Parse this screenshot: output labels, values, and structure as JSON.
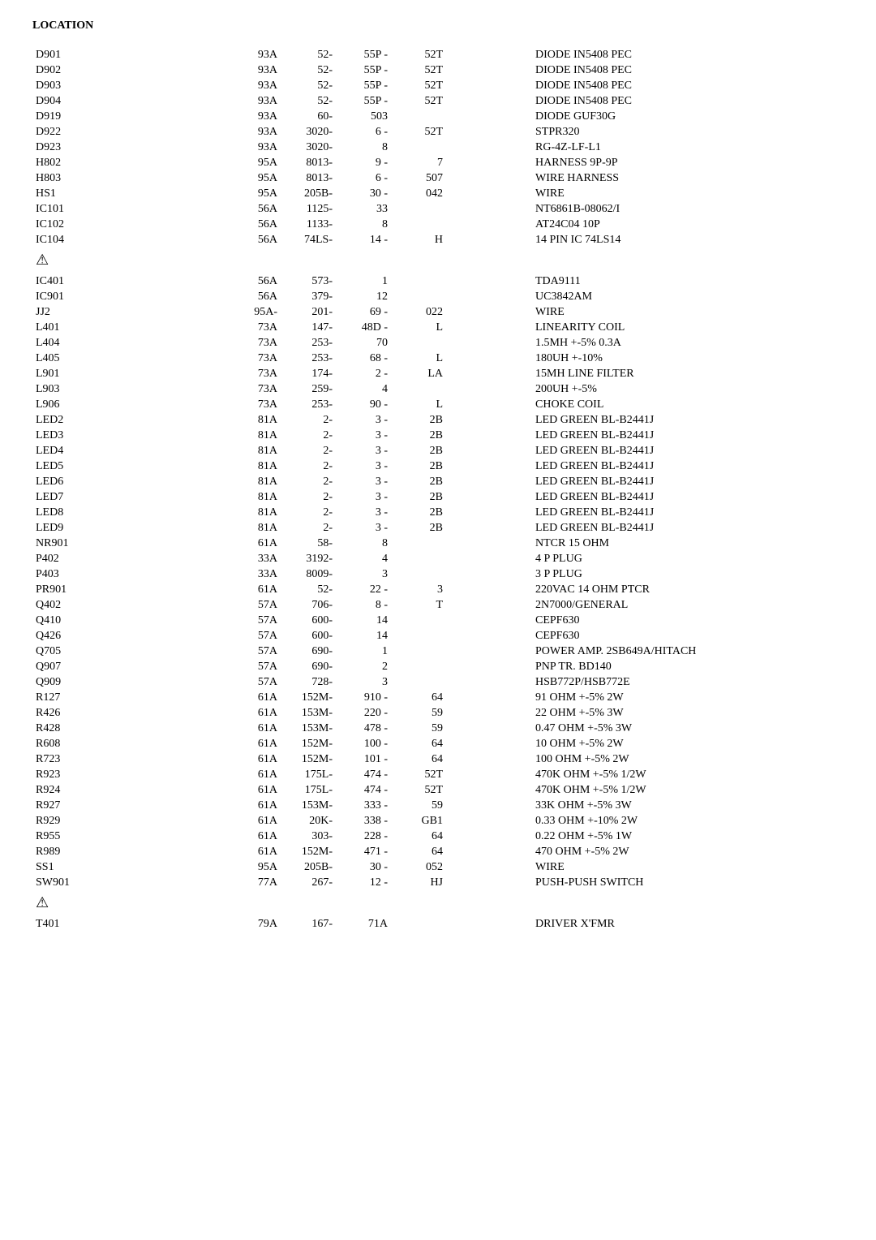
{
  "title": "LOCATION",
  "warning_glyph": "⚠",
  "footer": {
    "loc": "T401",
    "c1": "79A",
    "c2": "167-",
    "c3": "71A",
    "c4": "",
    "desc": "DRIVER X'FMR"
  },
  "groups": [
    {
      "rows": [
        {
          "loc": "D901",
          "c1": "93A",
          "c2": "52-",
          "c3": "55P -",
          "c4": "52T",
          "desc": "DIODE IN5408 PEC"
        },
        {
          "loc": "D902",
          "c1": "93A",
          "c2": "52-",
          "c3": "55P -",
          "c4": "52T",
          "desc": "DIODE IN5408 PEC"
        },
        {
          "loc": "D903",
          "c1": "93A",
          "c2": "52-",
          "c3": "55P -",
          "c4": "52T",
          "desc": "DIODE IN5408 PEC"
        },
        {
          "loc": "D904",
          "c1": "93A",
          "c2": "52-",
          "c3": "55P -",
          "c4": "52T",
          "desc": "DIODE IN5408 PEC"
        },
        {
          "loc": "D919",
          "c1": "93A",
          "c2": "60-",
          "c3": "503",
          "c4": "",
          "desc": "DIODE GUF30G"
        },
        {
          "loc": "D922",
          "c1": "93A",
          "c2": "3020-",
          "c3": "6 -",
          "c4": "52T",
          "desc": "STPR320"
        },
        {
          "loc": "D923",
          "c1": "93A",
          "c2": "3020-",
          "c3": "8",
          "c4": "",
          "desc": "RG-4Z-LF-L1"
        },
        {
          "loc": "H802",
          "c1": "95A",
          "c2": "8013-",
          "c3": "9 -",
          "c4": "7",
          "desc": "HARNESS 9P-9P"
        },
        {
          "loc": "H803",
          "c1": "95A",
          "c2": "8013-",
          "c3": "6 -",
          "c4": "507",
          "desc": "WIRE HARNESS"
        },
        {
          "loc": "HS1",
          "c1": "95A",
          "c2": "205B-",
          "c3": "30 -",
          "c4": "042",
          "desc": "WIRE"
        },
        {
          "loc": "IC101",
          "c1": "56A",
          "c2": "1125-",
          "c3": "33",
          "c4": "",
          "desc": "NT6861B-08062/I"
        },
        {
          "loc": "IC102",
          "c1": "56A",
          "c2": "1133-",
          "c3": "8",
          "c4": "",
          "desc": "AT24C04 10P"
        },
        {
          "loc": "IC104",
          "c1": "56A",
          "c2": "74LS-",
          "c3": "14 -",
          "c4": "H",
          "desc": "14 PIN IC 74LS14"
        }
      ],
      "warn_after": true
    },
    {
      "rows": [
        {
          "loc": "IC401",
          "c1": "56A",
          "c2": "573-",
          "c3": "1",
          "c4": "",
          "desc": "TDA9111"
        },
        {
          "loc": "IC901",
          "c1": "56A",
          "c2": "379-",
          "c3": "12",
          "c4": "",
          "desc": "UC3842AM"
        },
        {
          "loc": "JJ2",
          "c1": "95A-",
          "c2": "201-",
          "c3": "69 -",
          "c4": "022",
          "desc": "WIRE"
        },
        {
          "loc": "L401",
          "c1": "73A",
          "c2": "147-",
          "c3": "48D -",
          "c4": "L",
          "desc": "LINEARITY COIL"
        },
        {
          "loc": "L404",
          "c1": "73A",
          "c2": "253-",
          "c3": "70",
          "c4": "",
          "desc": "1.5MH +-5% 0.3A"
        },
        {
          "loc": "L405",
          "c1": "73A",
          "c2": "253-",
          "c3": "68 -",
          "c4": "L",
          "desc": "180UH +-10%"
        },
        {
          "loc": "L901",
          "c1": "73A",
          "c2": "174-",
          "c3": "2 -",
          "c4": "LA",
          "desc": "15MH LINE FILTER"
        },
        {
          "loc": "L903",
          "c1": "73A",
          "c2": "259-",
          "c3": "4",
          "c4": "",
          "desc": "200UH +-5%"
        },
        {
          "loc": "L906",
          "c1": "73A",
          "c2": "253-",
          "c3": "90 -",
          "c4": "L",
          "desc": "CHOKE COIL"
        },
        {
          "loc": "LED2",
          "c1": "81A",
          "c2": "2-",
          "c3": "3 -",
          "c4": "2B",
          "desc": "LED GREEN BL-B2441J"
        },
        {
          "loc": "LED3",
          "c1": "81A",
          "c2": "2-",
          "c3": "3 -",
          "c4": "2B",
          "desc": "LED GREEN BL-B2441J"
        },
        {
          "loc": "LED4",
          "c1": "81A",
          "c2": "2-",
          "c3": "3 -",
          "c4": "2B",
          "desc": "LED GREEN BL-B2441J"
        },
        {
          "loc": "LED5",
          "c1": "81A",
          "c2": "2-",
          "c3": "3 -",
          "c4": "2B",
          "desc": "LED GREEN BL-B2441J"
        },
        {
          "loc": "LED6",
          "c1": "81A",
          "c2": "2-",
          "c3": "3 -",
          "c4": "2B",
          "desc": "LED GREEN BL-B2441J"
        },
        {
          "loc": "LED7",
          "c1": "81A",
          "c2": "2-",
          "c3": "3 -",
          "c4": "2B",
          "desc": "LED GREEN BL-B2441J"
        },
        {
          "loc": "LED8",
          "c1": "81A",
          "c2": "2-",
          "c3": "3 -",
          "c4": "2B",
          "desc": "LED GREEN BL-B2441J"
        },
        {
          "loc": "LED9",
          "c1": "81A",
          "c2": "2-",
          "c3": "3 -",
          "c4": "2B",
          "desc": "LED GREEN BL-B2441J"
        },
        {
          "loc": "NR901",
          "c1": "61A",
          "c2": "58-",
          "c3": "8",
          "c4": "",
          "desc": "NTCR 15 OHM"
        },
        {
          "loc": "P402",
          "c1": "33A",
          "c2": "3192-",
          "c3": "4",
          "c4": "",
          "desc": "4 P PLUG"
        },
        {
          "loc": "P403",
          "c1": "33A",
          "c2": "8009-",
          "c3": "3",
          "c4": "",
          "desc": "3 P PLUG"
        },
        {
          "loc": "PR901",
          "c1": "61A",
          "c2": "52-",
          "c3": "22 -",
          "c4": "3",
          "desc": "220VAC 14 OHM PTCR"
        },
        {
          "loc": "Q402",
          "c1": "57A",
          "c2": "706-",
          "c3": "8 -",
          "c4": "T",
          "desc": "2N7000/GENERAL"
        },
        {
          "loc": "Q410",
          "c1": "57A",
          "c2": "600-",
          "c3": "14",
          "c4": "",
          "desc": "CEPF630"
        },
        {
          "loc": "Q426",
          "c1": "57A",
          "c2": "600-",
          "c3": "14",
          "c4": "",
          "desc": "CEPF630"
        },
        {
          "loc": "Q705",
          "c1": "57A",
          "c2": "690-",
          "c3": "1",
          "c4": "",
          "desc": "POWER AMP. 2SB649A/HITACH"
        },
        {
          "loc": "Q907",
          "c1": "57A",
          "c2": "690-",
          "c3": "2",
          "c4": "",
          "desc": "PNP TR. BD140"
        },
        {
          "loc": "Q909",
          "c1": "57A",
          "c2": "728-",
          "c3": "3",
          "c4": "",
          "desc": "HSB772P/HSB772E"
        },
        {
          "loc": "R127",
          "c1": "61A",
          "c2": "152M-",
          "c3": "910 -",
          "c4": "64",
          "desc": "91 OHM +-5% 2W"
        },
        {
          "loc": "R426",
          "c1": "61A",
          "c2": "153M-",
          "c3": "220 -",
          "c4": "59",
          "desc": "22 OHM +-5% 3W"
        },
        {
          "loc": "R428",
          "c1": "61A",
          "c2": "153M-",
          "c3": "478 -",
          "c4": "59",
          "desc": "0.47 OHM +-5% 3W"
        },
        {
          "loc": "R608",
          "c1": "61A",
          "c2": "152M-",
          "c3": "100 -",
          "c4": "64",
          "desc": "10 OHM +-5% 2W"
        },
        {
          "loc": "R723",
          "c1": "61A",
          "c2": "152M-",
          "c3": "101 -",
          "c4": "64",
          "desc": "100 OHM +-5% 2W"
        },
        {
          "loc": "R923",
          "c1": "61A",
          "c2": "175L-",
          "c3": "474 -",
          "c4": "52T",
          "desc": "470K OHM +-5% 1/2W"
        },
        {
          "loc": "R924",
          "c1": "61A",
          "c2": "175L-",
          "c3": "474 -",
          "c4": "52T",
          "desc": "470K OHM +-5% 1/2W"
        },
        {
          "loc": "R927",
          "c1": "61A",
          "c2": "153M-",
          "c3": "333 -",
          "c4": "59",
          "desc": "33K OHM +-5% 3W"
        },
        {
          "loc": "R929",
          "c1": "61A",
          "c2": "20K-",
          "c3": "338 -",
          "c4": "GB1",
          "desc": "0.33 OHM +-10% 2W"
        },
        {
          "loc": "R955",
          "c1": "61A",
          "c2": "303-",
          "c3": "228 -",
          "c4": "64",
          "desc": "0.22 OHM +-5% 1W"
        },
        {
          "loc": "R989",
          "c1": "61A",
          "c2": "152M-",
          "c3": "471 -",
          "c4": "64",
          "desc": "470 OHM +-5% 2W"
        },
        {
          "loc": "SS1",
          "c1": "95A",
          "c2": "205B-",
          "c3": "30 -",
          "c4": "052",
          "desc": "WIRE"
        },
        {
          "loc": "SW901",
          "c1": "77A",
          "c2": "267-",
          "c3": "12 -",
          "c4": "HJ",
          "desc": "PUSH-PUSH SWITCH"
        }
      ],
      "warn_after": true
    }
  ]
}
